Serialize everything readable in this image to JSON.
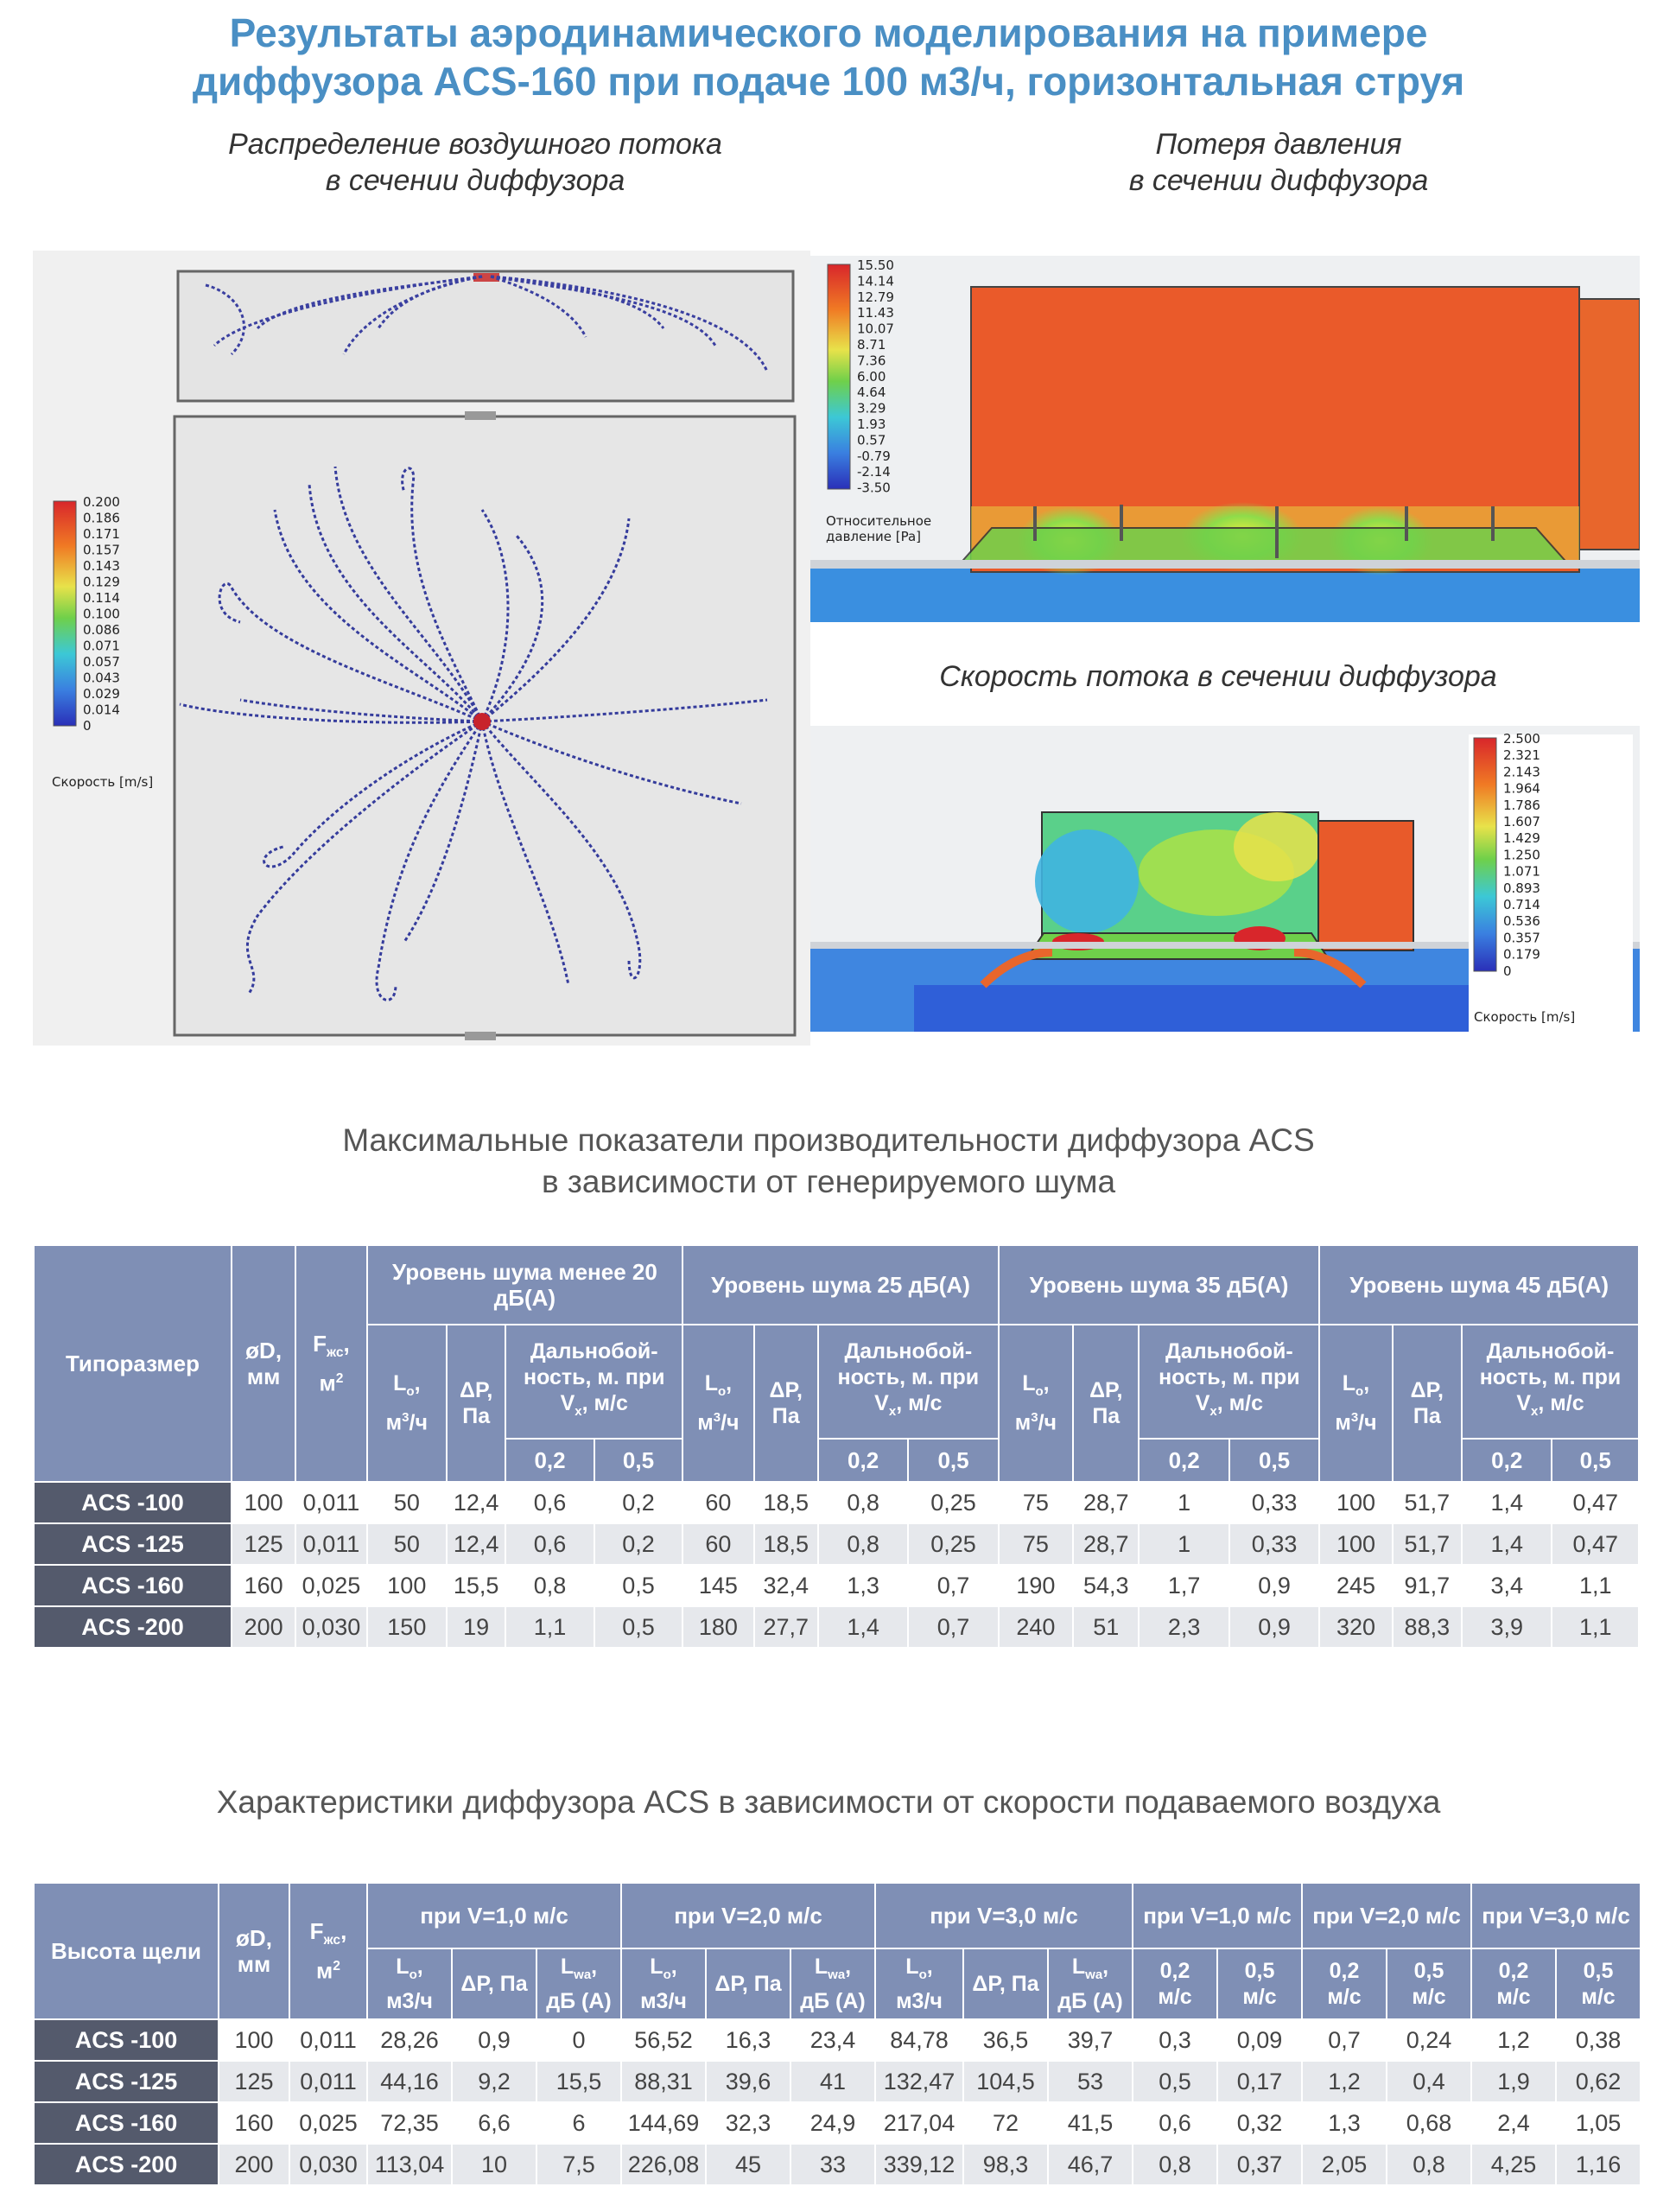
{
  "header": {
    "title_line1": "Результаты аэродинамического моделирования на примере",
    "title_line2": "диффузора ACS-160 при подаче 100 м3/ч, горизонтальная струя"
  },
  "captions": {
    "flow_line1": "Распределение воздушного потока",
    "flow_line2": "в сечении диффузора",
    "pressure_line1": "Потеря давления",
    "pressure_line2": "в сечении диффузора",
    "velocity": "Скорость потока в сечении диффузора"
  },
  "legends": {
    "flow": {
      "values": [
        "0.200",
        "0.186",
        "0.171",
        "0.157",
        "0.143",
        "0.129",
        "0.114",
        "0.100",
        "0.086",
        "0.071",
        "0.057",
        "0.043",
        "0.029",
        "0.014",
        "0"
      ],
      "label": "Скорость [m/s]"
    },
    "pressure": {
      "values": [
        "15.50",
        "14.14",
        "12.79",
        "11.43",
        "10.07",
        "8.71",
        "7.36",
        "6.00",
        "4.64",
        "3.29",
        "1.93",
        "0.57",
        "-0.79",
        "-2.14",
        "-3.50"
      ],
      "label_line1": "Относительное",
      "label_line2": "давление [Pa]"
    },
    "velocity": {
      "values": [
        "2.500",
        "2.321",
        "2.143",
        "1.964",
        "1.786",
        "1.607",
        "1.429",
        "1.250",
        "1.071",
        "0.893",
        "0.714",
        "0.536",
        "0.357",
        "0.179",
        "0"
      ],
      "label": "Скорость [m/s]"
    }
  },
  "table1": {
    "title_line1": "Максимальные показатели производительности диффузора ACS",
    "title_line2": "в зависимости от генерируемого шума",
    "h_size": "Типоразмер",
    "h_d": "øD, мм",
    "h_f": "Fжс, м2",
    "groups": [
      "Уровень шума менее 20 дБ(А)",
      "Уровень шума 25 дБ(А)",
      "Уровень шума 35 дБ(А)",
      "Уровень шума 45 дБ(А)"
    ],
    "h_lo": "Lo, м3/ч",
    "h_dp": "ΔP, Па",
    "h_range": "Дальнобой-ность, м. при Vx, м/с",
    "v1": "0,2",
    "v2": "0,5",
    "rows": [
      [
        "ACS -100",
        "100",
        "0,011",
        "50",
        "12,4",
        "0,6",
        "0,2",
        "60",
        "18,5",
        "0,8",
        "0,25",
        "75",
        "28,7",
        "1",
        "0,33",
        "100",
        "51,7",
        "1,4",
        "0,47"
      ],
      [
        "ACS -125",
        "125",
        "0,011",
        "50",
        "12,4",
        "0,6",
        "0,2",
        "60",
        "18,5",
        "0,8",
        "0,25",
        "75",
        "28,7",
        "1",
        "0,33",
        "100",
        "51,7",
        "1,4",
        "0,47"
      ],
      [
        "ACS -160",
        "160",
        "0,025",
        "100",
        "15,5",
        "0,8",
        "0,5",
        "145",
        "32,4",
        "1,3",
        "0,7",
        "190",
        "54,3",
        "1,7",
        "0,9",
        "245",
        "91,7",
        "3,4",
        "1,1"
      ],
      [
        "ACS -200",
        "200",
        "0,030",
        "150",
        "19",
        "1,1",
        "0,5",
        "180",
        "27,7",
        "1,4",
        "0,7",
        "240",
        "51",
        "2,3",
        "0,9",
        "320",
        "88,3",
        "3,9",
        "1,1"
      ]
    ]
  },
  "table2": {
    "title": "Характеристики диффузора ACS в зависимости от скорости подаваемого воздуха",
    "h_slot": "Высота щели",
    "h_d": "øD, мм",
    "h_f": "Fжс, м2",
    "groups": [
      "при V=1,0 м/с",
      "при V=2,0 м/с",
      "при V=3,0 м/с",
      "при V=1,0 м/с",
      "при V=2,0 м/с",
      "при V=3,0 м/с"
    ],
    "h_lo": "Lo, м3/ч",
    "h_dp": "ΔP, Па",
    "h_lwa": "Lwa, дБ (А)",
    "h_v02": "0,2 м/с",
    "h_v05": "0,5 м/с",
    "rows": [
      [
        "ACS -100",
        "100",
        "0,011",
        "28,26",
        "0,9",
        "0",
        "56,52",
        "16,3",
        "23,4",
        "84,78",
        "36,5",
        "39,7",
        "0,3",
        "0,09",
        "0,7",
        "0,24",
        "1,2",
        "0,38"
      ],
      [
        "ACS -125",
        "125",
        "0,011",
        "44,16",
        "9,2",
        "15,5",
        "88,31",
        "39,6",
        "41",
        "132,47",
        "104,5",
        "53",
        "0,5",
        "0,17",
        "1,2",
        "0,4",
        "1,9",
        "0,62"
      ],
      [
        "ACS -160",
        "160",
        "0,025",
        "72,35",
        "6,6",
        "6",
        "144,69",
        "32,3",
        "24,9",
        "217,04",
        "72",
        "41,5",
        "0,6",
        "0,32",
        "1,3",
        "0,68",
        "2,4",
        "1,05"
      ],
      [
        "ACS -200",
        "200",
        "0,030",
        "113,04",
        "10",
        "7,5",
        "226,08",
        "45",
        "33",
        "339,12",
        "98,3",
        "46,7",
        "0,8",
        "0,37",
        "2,05",
        "0,8",
        "4,25",
        "1,16"
      ]
    ]
  }
}
